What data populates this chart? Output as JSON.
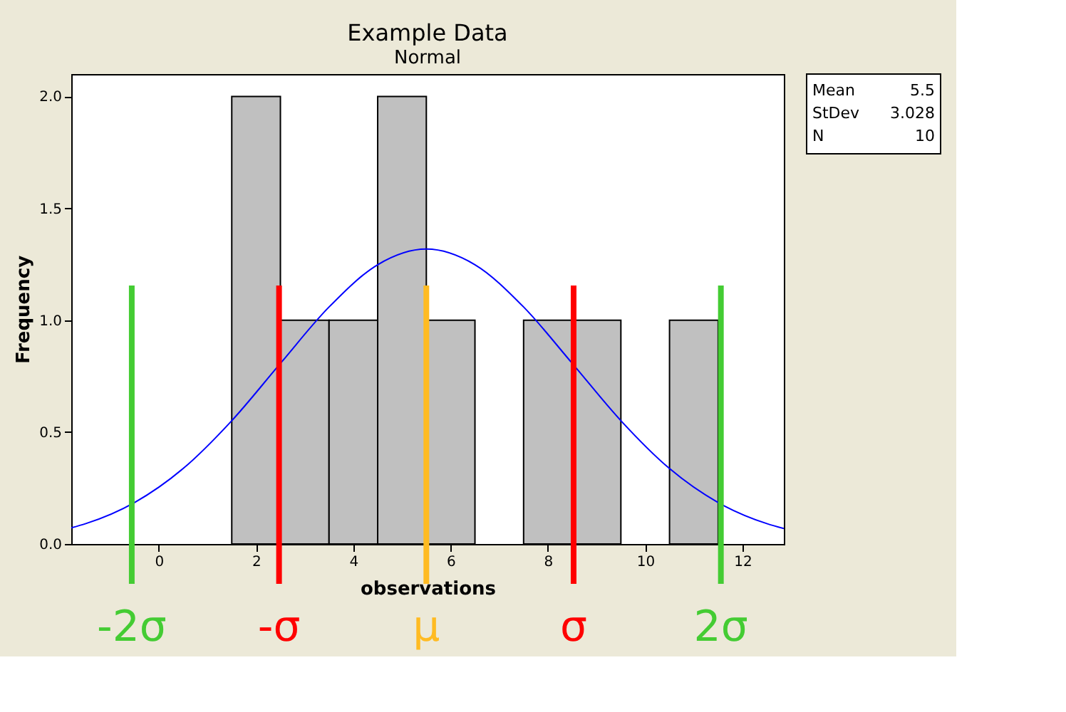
{
  "chart_data": {
    "type": "histogram",
    "title": "Example Data",
    "subtitle": "Normal",
    "xlabel": "observations",
    "ylabel": "Frequency",
    "bins": [
      1.5,
      2.5,
      3.5,
      4.5,
      5.5,
      6.5,
      7.5,
      8.5,
      9.5,
      10.5,
      11.5
    ],
    "values": [
      2,
      1,
      1,
      2,
      1,
      0,
      1,
      1,
      0,
      1
    ],
    "color": "#c0c0c0",
    "series": [
      {
        "type": "line",
        "color": "#0000ff",
        "x": [
          -1.8,
          -1.5,
          -0.5,
          0.5,
          1.5,
          2.5,
          3.5,
          4.5,
          5.5,
          6.5,
          7.5,
          8.5,
          9.5,
          10.5,
          11.5,
          12.5,
          12.85
        ],
        "values": [
          0.072,
          0.091,
          0.185,
          0.337,
          0.551,
          0.807,
          1.059,
          1.248,
          1.318,
          1.248,
          1.059,
          0.807,
          0.551,
          0.337,
          0.185,
          0.091,
          0.069
        ]
      }
    ],
    "xlim": [
      -1.8,
      12.85
    ],
    "xticks": [
      0,
      2,
      4,
      6,
      8,
      10,
      12
    ],
    "ylim": [
      0,
      2.1
    ],
    "yticks": [
      {
        "value": 0,
        "label": "0.0"
      },
      {
        "value": 0.5,
        "label": "0.5"
      },
      {
        "value": 1,
        "label": "1.0"
      },
      {
        "value": 1.5,
        "label": "1.5"
      },
      {
        "value": 2,
        "label": "2.0"
      }
    ],
    "ref_lines": [
      {
        "axis": "x",
        "value": -0.556,
        "label": "-2σ",
        "color": "#44cc33"
      },
      {
        "axis": "x",
        "value": 2.472,
        "label": "-σ",
        "color": "#ff0000"
      },
      {
        "axis": "x",
        "value": 5.5,
        "label": "μ",
        "color": "#ffbb22"
      },
      {
        "axis": "x",
        "value": 8.528,
        "label": "σ",
        "color": "#ff0000"
      },
      {
        "axis": "x",
        "value": 11.556,
        "label": "2σ",
        "color": "#44cc33"
      }
    ],
    "annotations": [
      "Mean 5.5",
      "StDev 3.028",
      "N 10"
    ],
    "grid": false
  }
}
